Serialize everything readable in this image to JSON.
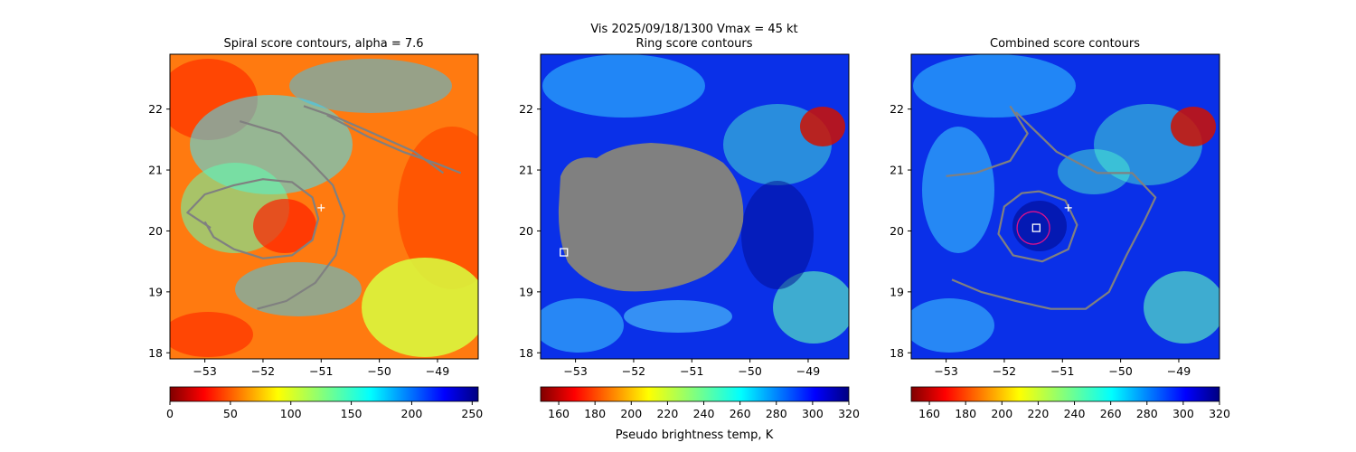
{
  "figure": {
    "suptitle_line1": "Vis  2025/09/18/1300    Vmax = 45 kt",
    "colorbar_label": "Pseudo brightness temp, K"
  },
  "colors": {
    "contour": "#808080",
    "mask": "#808080",
    "circle": "#e0118c",
    "marker": "#ffffff"
  },
  "chart_data": [
    {
      "type": "heatmap",
      "title": "Spiral score contours, alpha =  7.6",
      "colormap": "jet_r",
      "xlim": [
        -53.6,
        -48.3
      ],
      "ylim": [
        17.9,
        22.9
      ],
      "xticks": [
        -53,
        -52,
        -51,
        -50,
        -49
      ],
      "yticks": [
        18,
        19,
        20,
        21,
        22
      ],
      "colorbar": {
        "min": 0,
        "max": 255,
        "ticks": [
          0,
          50,
          100,
          150,
          200,
          250
        ]
      },
      "markers": [
        {
          "kind": "plus",
          "x": -51.0,
          "y": 20.38
        },
        {
          "kind": "square",
          "x": -53.2,
          "y": 19.65,
          "hidden": true
        }
      ],
      "contours": [
        {
          "name": "inner-spiral",
          "points": [
            [
              -52.9,
              20.05
            ],
            [
              -53.3,
              20.3
            ],
            [
              -53.0,
              20.6
            ],
            [
              -52.5,
              20.75
            ],
            [
              -52.0,
              20.85
            ],
            [
              -51.5,
              20.8
            ],
            [
              -51.15,
              20.55
            ],
            [
              -51.05,
              20.2
            ],
            [
              -51.15,
              19.85
            ],
            [
              -51.5,
              19.6
            ],
            [
              -52.0,
              19.55
            ],
            [
              -52.5,
              19.7
            ],
            [
              -52.85,
              19.9
            ],
            [
              -53.0,
              20.15
            ]
          ]
        },
        {
          "name": "outer-spiral",
          "points": [
            [
              -52.4,
              21.8
            ],
            [
              -51.7,
              21.6
            ],
            [
              -51.2,
              21.15
            ],
            [
              -50.8,
              20.75
            ],
            [
              -50.6,
              20.25
            ],
            [
              -50.75,
              19.6
            ],
            [
              -51.1,
              19.15
            ],
            [
              -51.6,
              18.85
            ],
            [
              -52.1,
              18.72
            ]
          ]
        },
        {
          "name": "upper-band",
          "points": [
            [
              -50.9,
              21.9
            ],
            [
              -50.2,
              21.55
            ],
            [
              -49.6,
              21.3
            ],
            [
              -49.0,
              21.1
            ],
            [
              -48.6,
              20.95
            ]
          ]
        },
        {
          "name": "top-band",
          "points": [
            [
              -51.3,
              22.05
            ],
            [
              -50.7,
              21.85
            ],
            [
              -50.1,
              21.6
            ],
            [
              -49.4,
              21.3
            ],
            [
              -48.9,
              20.95
            ]
          ]
        }
      ]
    },
    {
      "type": "heatmap",
      "title": "Ring score contours",
      "colormap": "jet",
      "xlim": [
        -53.6,
        -48.3
      ],
      "ylim": [
        17.9,
        22.9
      ],
      "xticks": [
        -53,
        -52,
        -51,
        -50,
        -49
      ],
      "yticks": [
        18,
        19,
        20,
        21,
        22
      ],
      "colorbar": {
        "min": 150,
        "max": 320,
        "ticks": [
          160,
          180,
          200,
          220,
          240,
          260,
          280,
          300,
          320
        ]
      },
      "mask_region": {
        "center_x": -51.45,
        "center_y": 20.2,
        "radius_x": 1.75,
        "radius_y": 1.25
      },
      "markers": [
        {
          "kind": "square",
          "x": -53.2,
          "y": 19.65
        }
      ],
      "contours": []
    },
    {
      "type": "heatmap",
      "title": "Combined score contours",
      "colormap": "jet",
      "xlim": [
        -53.6,
        -48.3
      ],
      "ylim": [
        17.9,
        22.9
      ],
      "xticks": [
        -53,
        -52,
        -51,
        -50,
        -49
      ],
      "yticks": [
        18,
        19,
        20,
        21,
        22
      ],
      "colorbar": {
        "min": 150,
        "max": 320,
        "ticks": [
          160,
          180,
          200,
          220,
          240,
          260,
          280,
          300,
          320
        ]
      },
      "markers": [
        {
          "kind": "plus",
          "x": -50.9,
          "y": 20.38
        },
        {
          "kind": "square",
          "x": -51.45,
          "y": 20.05
        },
        {
          "kind": "circle",
          "x": -51.5,
          "y": 20.05,
          "radius_deg": 0.28
        }
      ],
      "contours": [
        {
          "name": "ring-inner",
          "points": [
            [
              -51.4,
              20.65
            ],
            [
              -50.95,
              20.5
            ],
            [
              -50.75,
              20.1
            ],
            [
              -50.9,
              19.7
            ],
            [
              -51.35,
              19.5
            ],
            [
              -51.85,
              19.6
            ],
            [
              -52.1,
              19.95
            ],
            [
              -52.0,
              20.4
            ],
            [
              -51.7,
              20.62
            ],
            [
              -51.4,
              20.65
            ]
          ]
        },
        {
          "name": "ring-outer",
          "points": [
            [
              -51.8,
              21.95
            ],
            [
              -51.1,
              21.3
            ],
            [
              -50.4,
              20.95
            ],
            [
              -49.8,
              20.95
            ],
            [
              -49.4,
              20.55
            ],
            [
              -49.6,
              20.15
            ],
            [
              -49.9,
              19.6
            ],
            [
              -50.2,
              19.0
            ],
            [
              -50.6,
              18.72
            ],
            [
              -51.2,
              18.72
            ],
            [
              -51.8,
              18.85
            ],
            [
              -52.4,
              19.0
            ],
            [
              -52.9,
              19.2
            ]
          ]
        },
        {
          "name": "left-arc",
          "points": [
            [
              -53.0,
              20.9
            ],
            [
              -52.5,
              20.95
            ],
            [
              -51.9,
              21.15
            ],
            [
              -51.6,
              21.6
            ],
            [
              -51.9,
              22.05
            ]
          ]
        }
      ]
    }
  ]
}
